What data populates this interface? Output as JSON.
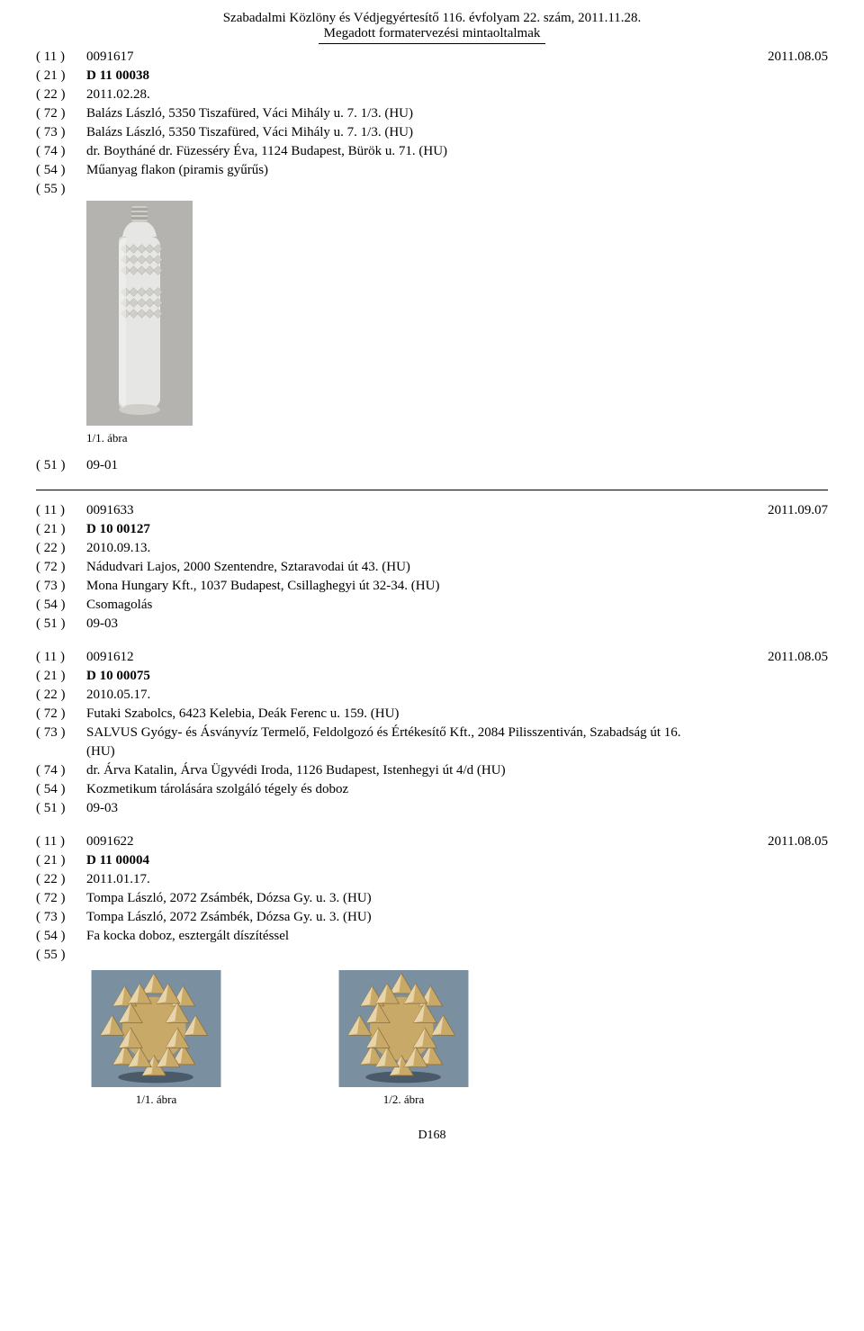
{
  "header": {
    "line1": "Szabadalmi Közlöny és Védjegyértesítő 116. évfolyam 22. szám, 2011.11.28.",
    "line2": "Megadott formatervezési mintaoltalmak"
  },
  "entries": [
    {
      "rows": [
        {
          "code": "( 11 )",
          "value": "0091617",
          "extra": "2011.08.05"
        },
        {
          "code": "( 21 )",
          "value": "D 11 00038",
          "bold": true
        },
        {
          "code": "( 22 )",
          "value": "2011.02.28."
        },
        {
          "code": "( 72 )",
          "value": "Balázs László, 5350 Tiszafüred, Váci Mihály u. 7. 1/3. (HU)"
        },
        {
          "code": "( 73 )",
          "value": "Balázs László, 5350 Tiszafüred, Váci Mihály u. 7. 1/3. (HU)"
        },
        {
          "code": "( 74 )",
          "value": "dr. Boytháné dr. Füzesséry Éva, 1124 Budapest, Bürök u. 71. (HU)"
        },
        {
          "code": "( 54 )",
          "value": "Műanyag flakon (piramis gyűrűs)"
        },
        {
          "code": "( 55 )",
          "value": ""
        }
      ],
      "image": "bottle",
      "caption": "1/1. ábra",
      "postRows": [
        {
          "code": "( 51 )",
          "value": "09-01"
        }
      ]
    },
    {
      "rows": [
        {
          "code": "( 11 )",
          "value": "0091633",
          "extra": "2011.09.07"
        },
        {
          "code": "( 21 )",
          "value": "D 10 00127",
          "bold": true
        },
        {
          "code": "( 22 )",
          "value": "2010.09.13."
        },
        {
          "code": "( 72 )",
          "value": "Nádudvari Lajos, 2000 Szentendre, Sztaravodai út 43. (HU)"
        },
        {
          "code": "( 73 )",
          "value": "Mona Hungary Kft., 1037 Budapest, Csillaghegyi út 32-34. (HU)"
        },
        {
          "code": "( 54 )",
          "value": "Csomagolás"
        },
        {
          "code": "( 51 )",
          "value": "09-03"
        }
      ]
    },
    {
      "rows": [
        {
          "code": "( 11 )",
          "value": "0091612",
          "extra": "2011.08.05"
        },
        {
          "code": "( 21 )",
          "value": "D 10 00075",
          "bold": true
        },
        {
          "code": "( 22 )",
          "value": "2010.05.17."
        },
        {
          "code": "( 72 )",
          "value": "Futaki Szabolcs, 6423 Kelebia, Deák Ferenc u. 159. (HU)"
        },
        {
          "code": "( 73 )",
          "value": "SALVUS Gyógy- és Ásványvíz Termelő, Feldolgozó és Értékesítő Kft., 2084 Pilisszentiván, Szabadság út 16.",
          "cont": "(HU)"
        },
        {
          "code": "( 74 )",
          "value": "dr. Árva Katalin, Árva Ügyvédi Iroda, 1126 Budapest, Istenhegyi út 4/d (HU)"
        },
        {
          "code": "( 54 )",
          "value": "Kozmetikum tárolására szolgáló tégely és doboz"
        },
        {
          "code": "( 51 )",
          "value": "09-03"
        }
      ]
    },
    {
      "rows": [
        {
          "code": "( 11 )",
          "value": "0091622",
          "extra": "2011.08.05"
        },
        {
          "code": "( 21 )",
          "value": "D 11 00004",
          "bold": true
        },
        {
          "code": "( 22 )",
          "value": "2011.01.17."
        },
        {
          "code": "( 72 )",
          "value": "Tompa László, 2072 Zsámbék, Dózsa Gy. u. 3. (HU)"
        },
        {
          "code": "( 73 )",
          "value": "Tompa László, 2072 Zsámbék, Dózsa Gy. u. 3. (HU)"
        },
        {
          "code": "( 54 )",
          "value": "Fa kocka doboz, esztergált díszítéssel"
        },
        {
          "code": "( 55 )",
          "value": ""
        }
      ],
      "image": "spikes"
    }
  ],
  "footerCaptions": {
    "c1": "1/1. ábra",
    "c2": "1/2. ábra"
  },
  "pageNum": "D168",
  "colors": {
    "bottleBg": "#b5b3af",
    "bottleBody": "#e6e6e4",
    "bottleShade": "#cfcec9",
    "bottleDark": "#a8a7a2",
    "spikeBg": "#7a8fa0",
    "spikeLight": "#e8d4a8",
    "spikeMid": "#c9a968",
    "spikeDark": "#8b6f3a"
  }
}
